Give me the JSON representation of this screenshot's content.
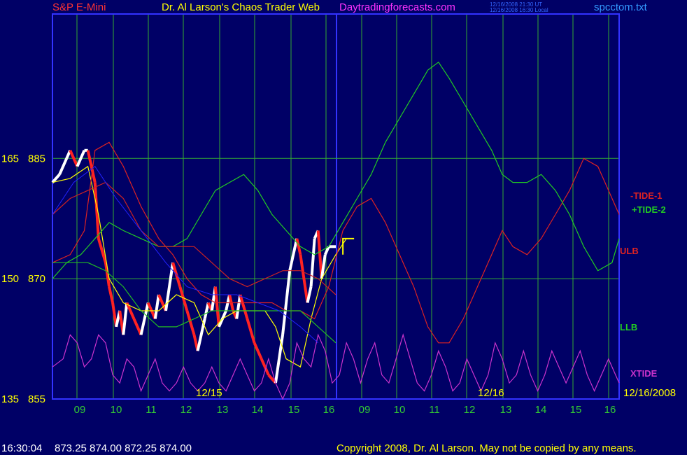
{
  "header": {
    "instrument": "S&P E-Mini",
    "site_title": "Dr. Al Larson's Chaos Trader Web",
    "site_url": "Daytradingforecasts.com",
    "time_ut": "12/16/2008 21:30 UT",
    "time_local": "12/16/2008 16:30 Local",
    "filename": "spcctom.txt"
  },
  "footer": {
    "timestamp": "16:30:04",
    "ohlc": "873.25 874.00 872.25 874.00",
    "copyright": "Copyright 2008, Dr. Al Larson. May not be copied by any means."
  },
  "colors": {
    "background": "#000066",
    "frame": "#3333ff",
    "grid": "#33aa33",
    "price_red": "#ff2222",
    "price_white": "#ffffff",
    "tide1": "#dd2222",
    "tide2": "#22cc22",
    "ulb": "#cc2222",
    "llb": "#22bb22",
    "xtide": "#cc33cc",
    "moving_avg": "#2222ff",
    "yellow": "#ffff00"
  },
  "chart_data": {
    "type": "line",
    "title": "S&P E-Mini",
    "y_left_labels": [
      {
        "tide": "165",
        "price": "885",
        "value": 885
      },
      {
        "tide": "150",
        "price": "870",
        "value": 870
      },
      {
        "tide": "135",
        "price": "855",
        "value": 855
      }
    ],
    "ylim": [
      855,
      903
    ],
    "x_hour_labels": [
      "09",
      "10",
      "11",
      "12",
      "13",
      "14",
      "15",
      "16",
      "09",
      "10",
      "11",
      "12",
      "13",
      "14",
      "15",
      "16"
    ],
    "date_labels": [
      "12/15",
      "12/16",
      "12/16/2008"
    ],
    "legend": [
      {
        "name": "-TIDE-1",
        "color": "#dd2222"
      },
      {
        "name": "+TIDE-2",
        "color": "#22cc22"
      },
      {
        "name": "ULB",
        "color": "#dd2222"
      },
      {
        "name": "LLB",
        "color": "#22cc22"
      },
      {
        "name": "XTIDE",
        "color": "#cc33cc"
      }
    ],
    "x_domain": [
      0,
      16.0
    ],
    "series": [
      {
        "name": "price",
        "x": [
          0,
          0.2,
          0.4,
          0.5,
          0.7,
          0.9,
          1.0,
          1.1,
          1.2,
          1.3,
          1.5,
          1.6,
          1.7,
          1.8,
          1.9,
          2.0,
          2.1,
          2.3,
          2.5,
          2.7,
          2.9,
          3.0,
          3.2,
          3.4,
          3.6,
          3.8,
          4.0,
          4.1,
          4.3,
          4.4,
          4.5,
          4.6,
          4.7,
          4.9,
          5.0,
          5.1,
          5.2,
          5.3,
          5.5,
          5.7,
          5.9,
          6.1,
          6.3,
          6.5,
          6.7,
          6.9,
          7.0,
          7.2,
          7.3,
          7.4,
          7.5,
          7.6,
          7.7,
          7.8,
          7.9,
          8.0
        ],
        "values": [
          882,
          883,
          885,
          886,
          884,
          886,
          886,
          884,
          882,
          875,
          872,
          869,
          867,
          864,
          866,
          863,
          867,
          865,
          863,
          867,
          865,
          868,
          866,
          872,
          869,
          866,
          863,
          861,
          865,
          867,
          866,
          869,
          864,
          866,
          868,
          866,
          865,
          868,
          865,
          862,
          860,
          858,
          857,
          863,
          871,
          875,
          873,
          867,
          869,
          875,
          876,
          870,
          873,
          874,
          874,
          874
        ]
      },
      {
        "name": "MA-yellow",
        "x": [
          0,
          0.5,
          1.0,
          1.3,
          1.6,
          2.0,
          2.5,
          3.0,
          3.5,
          4.0,
          4.4,
          4.8,
          5.2,
          5.6,
          6.0,
          6.3,
          6.6,
          7.0,
          7.3,
          7.6,
          8.0,
          8.3
        ],
        "values": [
          882,
          882.5,
          884,
          878,
          870,
          867,
          866,
          866,
          868,
          867,
          863,
          865,
          866,
          866,
          866,
          864,
          860,
          859,
          865,
          870,
          873,
          875
        ]
      },
      {
        "name": "-TIDE-1",
        "x": [
          0,
          0.5,
          0.9,
          1.2,
          1.6,
          2.0,
          2.5,
          3.0,
          3.4,
          3.8,
          4.2,
          4.6,
          5.0,
          5.4,
          5.8,
          6.2,
          6.6,
          7.0,
          7.4,
          7.8,
          8.2,
          8.6,
          9.0,
          9.4,
          9.8,
          10.2,
          10.6,
          10.9,
          11.2,
          11.6,
          12.0,
          12.4,
          12.7,
          13.0,
          13.4,
          13.8,
          14.2,
          14.6,
          14.8,
          15.0,
          15.4,
          15.8,
          16.0
        ],
        "values": [
          872,
          873,
          876,
          886,
          887,
          884,
          879,
          875,
          873,
          870,
          868,
          867,
          867,
          867,
          867,
          867,
          866,
          866,
          865,
          869,
          876,
          879,
          880,
          877,
          873,
          869,
          864,
          862,
          862,
          865,
          869,
          873,
          876,
          874,
          873,
          875,
          878,
          881,
          883,
          885,
          884,
          880,
          878
        ]
      },
      {
        "name": "+TIDE-2",
        "x": [
          0,
          0.4,
          0.8,
          1.2,
          1.6,
          2.0,
          2.5,
          3.0,
          3.4,
          3.8,
          4.2,
          4.6,
          5.0,
          5.4,
          5.8,
          6.2,
          6.6,
          7.0,
          7.4,
          7.8,
          8.2,
          8.6,
          9.0,
          9.4,
          9.8,
          10.2,
          10.6,
          10.9,
          11.2,
          11.6,
          12.0,
          12.4,
          12.7,
          13.0,
          13.4,
          13.8,
          14.2,
          14.6,
          14.8,
          15.0,
          15.4,
          15.8,
          16.0
        ],
        "values": [
          870,
          872,
          873,
          875,
          877,
          876,
          875,
          874,
          874,
          875,
          878,
          881,
          882,
          883,
          881,
          878,
          876,
          874,
          873,
          874,
          877,
          880,
          883,
          887,
          890,
          893,
          896,
          897,
          895,
          892,
          889,
          886,
          883,
          882,
          882,
          883,
          881,
          878,
          876,
          874,
          871,
          872,
          875
        ]
      },
      {
        "name": "ULB",
        "x": [
          0,
          0.5,
          1.0,
          1.5,
          2.0,
          2.5,
          3.0,
          3.5,
          4.0,
          4.5,
          5.0,
          5.5,
          6.0,
          6.5,
          7.0,
          7.5,
          8.0
        ],
        "values": [
          878,
          880,
          881,
          882,
          880,
          876,
          874,
          874,
          874,
          872,
          870,
          869,
          870,
          871,
          871,
          870,
          868
        ]
      },
      {
        "name": "LLB",
        "x": [
          0,
          0.5,
          1.0,
          1.5,
          2.0,
          2.5,
          3.0,
          3.5,
          4.0,
          4.5,
          5.0,
          5.5,
          6.0,
          6.5,
          7.0,
          7.5,
          8.0
        ],
        "values": [
          872,
          872,
          872,
          871,
          869,
          866,
          864,
          864,
          865,
          866,
          866,
          866,
          866,
          866,
          866,
          864,
          862
        ]
      },
      {
        "name": "XTIDE",
        "x": [
          0,
          0.3,
          0.5,
          0.7,
          0.9,
          1.1,
          1.3,
          1.5,
          1.7,
          1.9,
          2.1,
          2.3,
          2.5,
          2.7,
          2.9,
          3.1,
          3.3,
          3.5,
          3.7,
          3.9,
          4.1,
          4.3,
          4.5,
          4.7,
          4.9,
          5.1,
          5.3,
          5.5,
          5.7,
          5.9,
          6.1,
          6.3,
          6.5,
          6.7,
          6.9,
          7.1,
          7.3,
          7.5,
          7.7,
          7.9,
          8.1,
          8.3,
          8.5,
          8.7,
          8.9,
          9.1,
          9.3,
          9.5,
          9.7,
          9.9,
          10.1,
          10.3,
          10.5,
          10.7,
          10.9,
          11.1,
          11.3,
          11.5,
          11.7,
          11.9,
          12.1,
          12.3,
          12.5,
          12.7,
          12.9,
          13.1,
          13.3,
          13.5,
          13.7,
          13.9,
          14.1,
          14.3,
          14.5,
          14.7,
          14.9,
          15.1,
          15.3,
          15.5,
          15.7,
          15.9,
          16.0
        ],
        "values": [
          859,
          860,
          863,
          862,
          859,
          860,
          863,
          862,
          858,
          857,
          860,
          859,
          856,
          858,
          860,
          857,
          856,
          857,
          859,
          857,
          856,
          857,
          859,
          857,
          856,
          858,
          860,
          858,
          856,
          857,
          860,
          857,
          855,
          857,
          862,
          860,
          859,
          863,
          861,
          857,
          858,
          862,
          860,
          857,
          860,
          862,
          858,
          857,
          860,
          863,
          860,
          857,
          856,
          858,
          861,
          859,
          856,
          857,
          860,
          858,
          856,
          858,
          862,
          860,
          857,
          858,
          861,
          858,
          856,
          858,
          861,
          859,
          857,
          859,
          861,
          858,
          856,
          858,
          860,
          858,
          857
        ]
      }
    ],
    "grid": true,
    "yellow_bracket_x": 8.2
  }
}
